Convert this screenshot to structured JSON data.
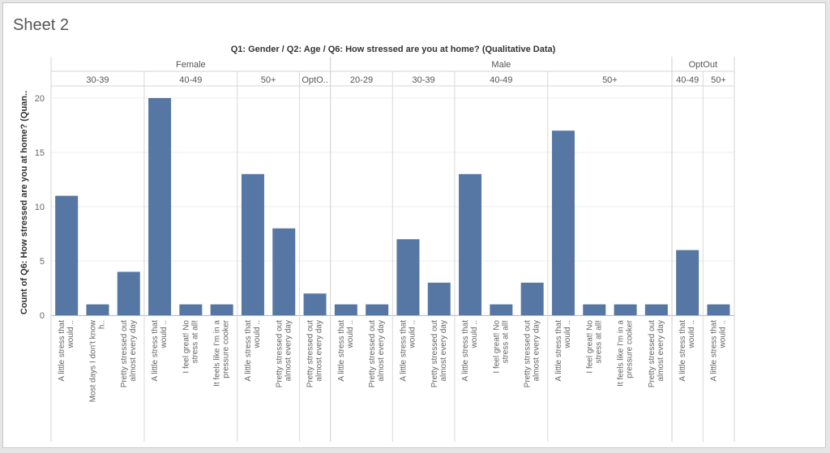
{
  "sheet": {
    "title": "Sheet 2"
  },
  "chart_data": {
    "type": "bar",
    "title": "Q1: Gender / Q2: Age / Q6: How stressed are you at home? (Qualitative Data)",
    "ylabel": "Count of Q6: How stressed are you at home? (Quan..",
    "ylim": [
      0,
      21
    ],
    "yticks": [
      0,
      5,
      10,
      15,
      20
    ],
    "grid": true,
    "bar_color": "#5677a4",
    "groups": [
      {
        "label": "Female",
        "subgroups": [
          {
            "label": "30-39",
            "bars": [
              {
                "label": "A little stress that would ..",
                "value": 11
              },
              {
                "label": "Most days I don't know h..",
                "value": 1
              },
              {
                "label": "Pretty stressed out almost every day",
                "value": 4
              }
            ]
          },
          {
            "label": "40-49",
            "bars": [
              {
                "label": "A little stress that would ..",
                "value": 20
              },
              {
                "label": "I feel great! No stress at all!",
                "value": 1
              },
              {
                "label": "It feels like I'm in a pressure cooker",
                "value": 1
              }
            ]
          },
          {
            "label": "50+",
            "bars": [
              {
                "label": "A little stress that would ..",
                "value": 13
              },
              {
                "label": "Pretty stressed out almost every day",
                "value": 8
              }
            ]
          },
          {
            "label": "OptO..",
            "bars": [
              {
                "label": "Pretty stressed out almost every day",
                "value": 2
              }
            ]
          }
        ]
      },
      {
        "label": "Male",
        "subgroups": [
          {
            "label": "20-29",
            "bars": [
              {
                "label": "A little stress that would ..",
                "value": 1
              },
              {
                "label": "Pretty stressed out almost every day",
                "value": 1
              }
            ]
          },
          {
            "label": "30-39",
            "bars": [
              {
                "label": "A little stress that would ..",
                "value": 7
              },
              {
                "label": "Pretty stressed out almost every day",
                "value": 3
              }
            ]
          },
          {
            "label": "40-49",
            "bars": [
              {
                "label": "A little stress that would ..",
                "value": 13
              },
              {
                "label": "I feel great! No stress at all!",
                "value": 1
              },
              {
                "label": "Pretty stressed out almost every day",
                "value": 3
              }
            ]
          },
          {
            "label": "50+",
            "bars": [
              {
                "label": "A little stress that would ..",
                "value": 17
              },
              {
                "label": "I feel great! No stress at all!",
                "value": 1
              },
              {
                "label": "It feels like I'm in a pressure cooker",
                "value": 1
              },
              {
                "label": "Pretty stressed out almost every day",
                "value": 1
              }
            ]
          }
        ]
      },
      {
        "label": "OptOut",
        "subgroups": [
          {
            "label": "40-49",
            "bars": [
              {
                "label": "A little stress that would ..",
                "value": 6
              }
            ]
          },
          {
            "label": "50+",
            "bars": [
              {
                "label": "A little stress that would ..",
                "value": 1
              }
            ]
          }
        ]
      }
    ]
  }
}
